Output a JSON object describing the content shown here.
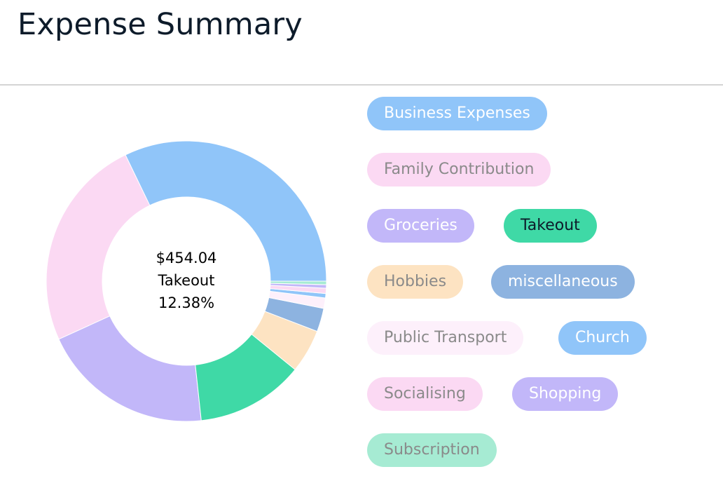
{
  "header": {
    "title": "Expense Summary"
  },
  "center": {
    "amount": "$454.04",
    "category": "Takeout",
    "percent": "12.38%"
  },
  "chart_data": {
    "type": "pie",
    "title": "",
    "categories": [
      "Business Expenses",
      "Family Contribution",
      "Groceries",
      "Takeout",
      "Hobbies",
      "miscellaneous",
      "Public Transport",
      "Church",
      "Socialising",
      "Shopping",
      "Subscription"
    ],
    "values": [
      32.0,
      24.5,
      19.8,
      12.38,
      5.0,
      2.7,
      1.2,
      0.5,
      0.6,
      0.4,
      0.4
    ],
    "colors": [
      "#90c5f9",
      "#fbd9f3",
      "#c2b7f9",
      "#3fd9a6",
      "#fde3c2",
      "#8db3e0",
      "#fdf0fb",
      "#90c5f9",
      "#fbd9f3",
      "#c2b7f9",
      "#a6ebd3"
    ],
    "legend_position": "right"
  },
  "legend": [
    {
      "label": "Business Expenses",
      "bg": "#90c5f9",
      "fg": "#ffffff"
    },
    {
      "label": "Family Contribution",
      "bg": "#fbd9f3",
      "fg": "#8a8a8a"
    },
    {
      "label": "Groceries",
      "bg": "#c2b7f9",
      "fg": "#ffffff"
    },
    {
      "label": "Takeout",
      "bg": "#3fd9a6",
      "fg": "#0d1b2a"
    },
    {
      "label": "Hobbies",
      "bg": "#fde3c2",
      "fg": "#8a8a8a"
    },
    {
      "label": "miscellaneous",
      "bg": "#8db3e0",
      "fg": "#ffffff"
    },
    {
      "label": "Public Transport",
      "bg": "#fdf0fb",
      "fg": "#8a8a8a"
    },
    {
      "label": "Church",
      "bg": "#90c5f9",
      "fg": "#ffffff"
    },
    {
      "label": "Socialising",
      "bg": "#fbd9f3",
      "fg": "#8a8a8a"
    },
    {
      "label": "Shopping",
      "bg": "#c2b7f9",
      "fg": "#ffffff"
    },
    {
      "label": "Subscription",
      "bg": "#a6ebd3",
      "fg": "#8a8a8a"
    }
  ]
}
